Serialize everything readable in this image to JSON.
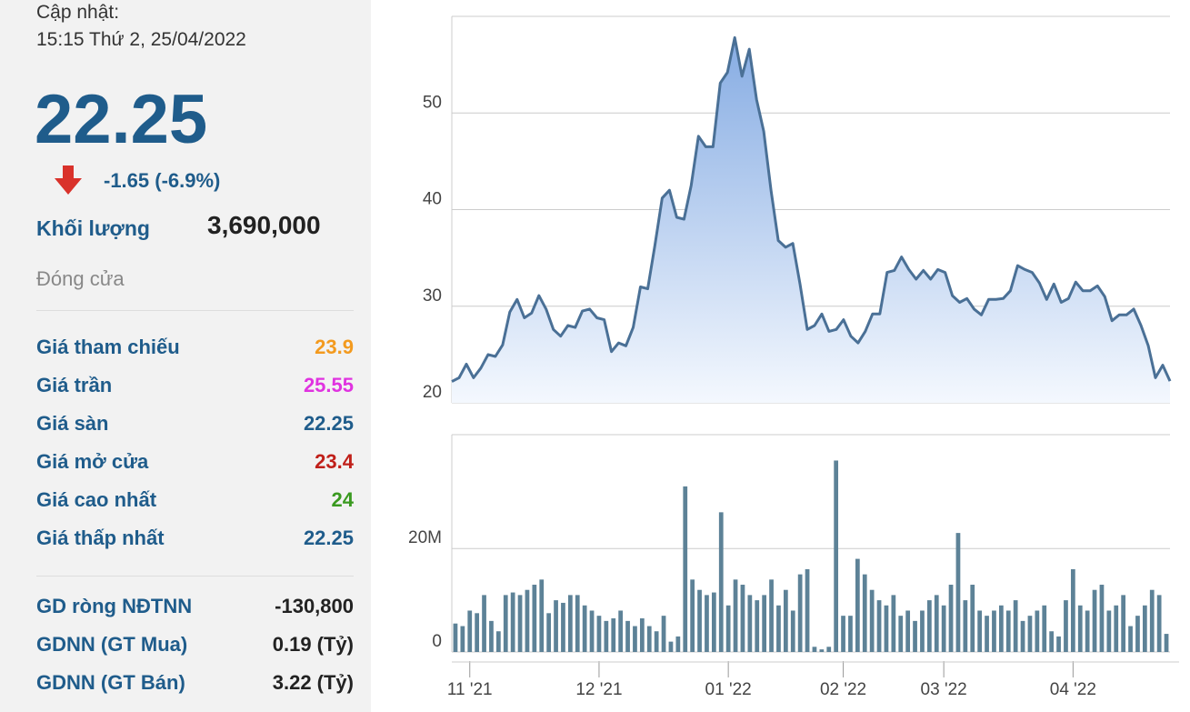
{
  "update": {
    "label": "Cập nhật:",
    "time": "15:15 Thứ 2, 25/04/2022"
  },
  "price": "22.25",
  "change": "-1.65 (-6.9%)",
  "volume": {
    "label": "Khối lượng",
    "value": "3,690,000"
  },
  "status": "Đóng cửa",
  "stats": [
    {
      "label": "Giá tham chiếu",
      "value": "23.9",
      "color": "#f39a1e"
    },
    {
      "label": "Giá trần",
      "value": "25.55",
      "color": "#e033e0"
    },
    {
      "label": "Giá sàn",
      "value": "22.25",
      "color": "#1f5c8b"
    },
    {
      "label": "Giá mở cửa",
      "value": "23.4",
      "color": "#c0201a"
    },
    {
      "label": "Giá cao nhất",
      "value": "24",
      "color": "#3a9a20"
    },
    {
      "label": "Giá thấp nhất",
      "value": "22.25",
      "color": "#1f5c8b"
    }
  ],
  "foreign": [
    {
      "label": "GD ròng NĐTNN",
      "value": "-130,800"
    },
    {
      "label": "GDNN (GT Mua)",
      "value": "0.19 (Tỷ)"
    },
    {
      "label": "GDNN (GT Bán)",
      "value": "3.22 (Tỷ)"
    }
  ],
  "chart_data": [
    {
      "type": "area",
      "color": "#4a7096",
      "grid": true,
      "categories": [
        null,
        null,
        "11 '21",
        null,
        null,
        null,
        null,
        null,
        null,
        null,
        null,
        null,
        null,
        null,
        null,
        null,
        null,
        null,
        null,
        null,
        "12 '21",
        null,
        null,
        null,
        null,
        null,
        null,
        null,
        null,
        null,
        null,
        null,
        null,
        null,
        null,
        null,
        null,
        null,
        "01 '22",
        null,
        null,
        null,
        null,
        null,
        null,
        null,
        null,
        null,
        null,
        null,
        null,
        null,
        null,
        null,
        "02 '22",
        null,
        null,
        null,
        null,
        null,
        null,
        null,
        null,
        null,
        null,
        null,
        null,
        null,
        "03 '22",
        null,
        null,
        null,
        null,
        null,
        null,
        null,
        null,
        null,
        null,
        null,
        null,
        null,
        null,
        null,
        null,
        null,
        "04 '22",
        null,
        null,
        null,
        null,
        null,
        null,
        null,
        null,
        null,
        null,
        null,
        null,
        null
      ],
      "values": [
        22.2,
        22.6,
        24,
        22.6,
        23.6,
        25,
        24.8,
        26,
        29.4,
        30.7,
        28.8,
        29.3,
        31.1,
        29.7,
        27.6,
        26.9,
        28,
        27.8,
        29.5,
        29.7,
        28.8,
        28.6,
        25.3,
        26.2,
        25.9,
        27.8,
        32,
        31.8,
        36.3,
        41.2,
        42,
        39.2,
        39,
        42.5,
        47.6,
        46.5,
        46.5,
        53.1,
        54.2,
        57.8,
        53.8,
        56.6,
        51.4,
        48.1,
        42,
        36.8,
        36.1,
        36.5,
        32.3,
        27.6,
        28,
        29.2,
        27.4,
        27.6,
        28.6,
        26.9,
        26.2,
        27.4,
        29.2,
        29.2,
        33.5,
        33.7,
        35.1,
        33.8,
        32.8,
        33.7,
        32.8,
        33.8,
        33.5,
        31.1,
        30.4,
        30.8,
        29.7,
        29.1,
        30.7,
        30.7,
        30.8,
        31.6,
        34.2,
        33.8,
        33.5,
        32.4,
        30.7,
        32.3,
        30.4,
        30.8,
        32.5,
        31.6,
        31.6,
        32.1,
        31,
        28.5,
        29.1,
        29.1,
        29.7,
        28,
        25.9,
        22.6,
        23.9,
        22.25
      ],
      "ylim": [
        20,
        60
      ],
      "yticks": [
        20,
        30,
        40,
        50
      ]
    },
    {
      "type": "bar",
      "color": "#5d8297",
      "grid": true,
      "categories": [
        null,
        null,
        "11 '21",
        null,
        null,
        null,
        null,
        null,
        null,
        null,
        null,
        null,
        null,
        null,
        null,
        null,
        null,
        null,
        null,
        null,
        "12 '21",
        null,
        null,
        null,
        null,
        null,
        null,
        null,
        null,
        null,
        null,
        null,
        null,
        null,
        null,
        null,
        null,
        null,
        "01 '22",
        null,
        null,
        null,
        null,
        null,
        null,
        null,
        null,
        null,
        null,
        null,
        null,
        null,
        null,
        null,
        "02 '22",
        null,
        null,
        null,
        null,
        null,
        null,
        null,
        null,
        null,
        null,
        null,
        null,
        null,
        "03 '22",
        null,
        null,
        null,
        null,
        null,
        null,
        null,
        null,
        null,
        null,
        null,
        null,
        null,
        null,
        null,
        null,
        null,
        "04 '22",
        null,
        null,
        null,
        null,
        null,
        null,
        null,
        null,
        null,
        null,
        null,
        null,
        null
      ],
      "values": [
        5500000,
        5000000,
        8000000,
        7500000,
        11000000,
        6000000,
        4000000,
        11000000,
        11500000,
        11000000,
        12000000,
        13000000,
        14000000,
        7500000,
        10000000,
        9500000,
        11000000,
        11000000,
        9000000,
        8000000,
        7000000,
        6000000,
        6500000,
        8000000,
        6000000,
        5000000,
        6500000,
        5000000,
        4000000,
        7000000,
        2000000,
        3000000,
        32000000,
        14000000,
        12000000,
        11000000,
        11500000,
        27000000,
        9000000,
        14000000,
        13000000,
        11000000,
        10000000,
        11000000,
        14000000,
        9000000,
        12000000,
        8000000,
        15000000,
        16000000,
        1000000,
        500000,
        1000000,
        37000000,
        7000000,
        7000000,
        18000000,
        15000000,
        12000000,
        10000000,
        9000000,
        11000000,
        7000000,
        8000000,
        6000000,
        8000000,
        10000000,
        11000000,
        9000000,
        13000000,
        23000000,
        10000000,
        13000000,
        8000000,
        7000000,
        8000000,
        9000000,
        8000000,
        10000000,
        6000000,
        7000000,
        8000000,
        9000000,
        4000000,
        3000000,
        10000000,
        16000000,
        9000000,
        8000000,
        12000000,
        13000000,
        8000000,
        9000000,
        11000000,
        5000000,
        7000000,
        9000000,
        12000000,
        11000000,
        3500000
      ],
      "ylim": [
        0,
        42000000
      ],
      "yticks": [
        0,
        {
          "value": 20000000,
          "label": "20M"
        }
      ]
    }
  ]
}
